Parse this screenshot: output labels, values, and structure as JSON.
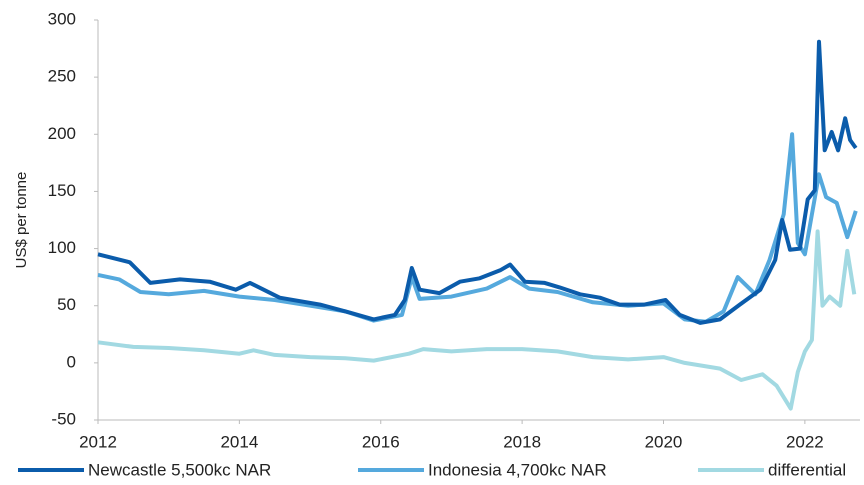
{
  "chart_data": {
    "type": "line",
    "y_label": "US$ per tonne",
    "xlim": [
      2012,
      2022.78
    ],
    "xticks": [
      2012,
      2014,
      2016,
      2018,
      2020,
      2022
    ],
    "ylim": [
      -50,
      300
    ],
    "yticks": [
      -50,
      0,
      50,
      100,
      150,
      200,
      250,
      300
    ],
    "legend": "bottom",
    "series": [
      {
        "name": "Newcastle 5,500kc NAR",
        "color": "#0b5cab",
        "x": [
          2012.0,
          2012.45,
          2012.74,
          2013.16,
          2013.58,
          2013.95,
          2014.15,
          2014.57,
          2015.14,
          2015.56,
          2015.9,
          2016.2,
          2016.34,
          2016.44,
          2016.55,
          2016.83,
          2017.12,
          2017.4,
          2017.69,
          2017.83,
          2018.04,
          2018.32,
          2018.53,
          2018.82,
          2019.1,
          2019.38,
          2019.73,
          2020.03,
          2020.23,
          2020.52,
          2020.8,
          2021.08,
          2021.37,
          2021.58,
          2021.68,
          2021.79,
          2021.93,
          2022.04,
          2022.14,
          2022.2,
          2022.28,
          2022.38,
          2022.47,
          2022.57,
          2022.64,
          2022.72
        ],
        "values": [
          95,
          88,
          70,
          73,
          71,
          64,
          70,
          57,
          51,
          44,
          38,
          42,
          55,
          83,
          64,
          61,
          71,
          74,
          81,
          86,
          71,
          70,
          66,
          60,
          57,
          51,
          51,
          55,
          42,
          35,
          38,
          51,
          64,
          90,
          125,
          99,
          100,
          143,
          151,
          281,
          186,
          202,
          186,
          214,
          195,
          188
        ]
      },
      {
        "name": "Indonesia 4,700kc NAR",
        "color": "#55a9dd",
        "x": [
          2012.0,
          2012.3,
          2012.6,
          2013.0,
          2013.5,
          2014.0,
          2014.5,
          2015.0,
          2015.5,
          2015.9,
          2016.3,
          2016.44,
          2016.55,
          2017.0,
          2017.5,
          2017.83,
          2018.1,
          2018.5,
          2019.0,
          2019.5,
          2020.0,
          2020.3,
          2020.6,
          2020.85,
          2021.05,
          2021.3,
          2021.5,
          2021.7,
          2021.82,
          2021.9,
          2022.0,
          2022.1,
          2022.2,
          2022.3,
          2022.45,
          2022.6,
          2022.72
        ],
        "values": [
          77,
          73,
          62,
          60,
          63,
          58,
          55,
          50,
          45,
          37,
          42,
          75,
          56,
          58,
          65,
          75,
          65,
          62,
          53,
          50,
          52,
          38,
          36,
          45,
          75,
          60,
          90,
          130,
          200,
          105,
          95,
          130,
          165,
          145,
          140,
          110,
          133
        ]
      },
      {
        "name": "differential",
        "color": "#a2d9e2",
        "x": [
          2012.0,
          2012.5,
          2013.0,
          2013.5,
          2014.0,
          2014.2,
          2014.5,
          2015.0,
          2015.5,
          2015.9,
          2016.4,
          2016.6,
          2017.0,
          2017.5,
          2018.0,
          2018.5,
          2019.0,
          2019.5,
          2020.0,
          2020.3,
          2020.8,
          2021.1,
          2021.4,
          2021.6,
          2021.8,
          2021.9,
          2022.0,
          2022.1,
          2022.18,
          2022.25,
          2022.35,
          2022.5,
          2022.6,
          2022.7
        ],
        "values": [
          18,
          14,
          13,
          11,
          8,
          11,
          7,
          5,
          4,
          2,
          8,
          12,
          10,
          12,
          12,
          10,
          5,
          3,
          5,
          0,
          -5,
          -15,
          -10,
          -20,
          -40,
          -8,
          10,
          20,
          115,
          50,
          58,
          50,
          98,
          60
        ]
      }
    ]
  }
}
